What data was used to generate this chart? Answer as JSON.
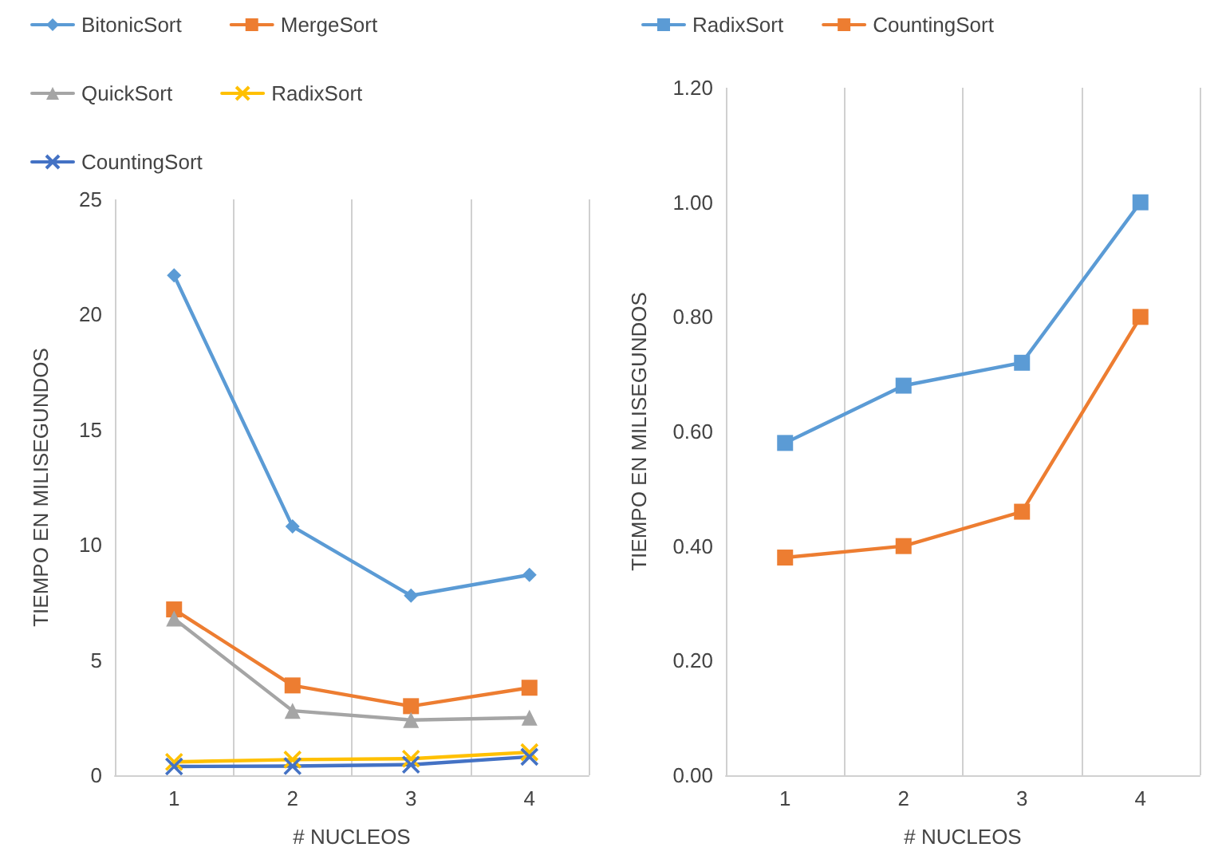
{
  "chart_data": [
    {
      "type": "line",
      "xlabel": "# NUCLEOS",
      "ylabel": "TIEMPO EN MILISEGUNDOS",
      "categories": [
        "1",
        "2",
        "3",
        "4"
      ],
      "ylim": [
        0,
        25
      ],
      "yticks": [
        0,
        5,
        10,
        15,
        20,
        25
      ],
      "grid": "x",
      "legend": "top",
      "series": [
        {
          "name": "BitonicSort",
          "color": "#5b9bd5",
          "marker": "diamond",
          "values": [
            21.7,
            10.8,
            7.8,
            8.7
          ]
        },
        {
          "name": "MergeSort",
          "color": "#ed7d31",
          "marker": "square",
          "values": [
            7.2,
            3.9,
            3.0,
            3.8
          ]
        },
        {
          "name": "QuickSort",
          "color": "#a5a5a5",
          "marker": "triangle",
          "values": [
            6.8,
            2.8,
            2.4,
            2.5
          ]
        },
        {
          "name": "RadixSort",
          "color": "#ffc000",
          "marker": "cross",
          "values": [
            0.58,
            0.68,
            0.72,
            1.0
          ]
        },
        {
          "name": "CountingSort",
          "color": "#4472c4",
          "marker": "cross",
          "values": [
            0.38,
            0.4,
            0.46,
            0.8
          ]
        }
      ]
    },
    {
      "type": "line",
      "xlabel": "# NUCLEOS",
      "ylabel": "TIEMPO EN MILISEGUNDOS",
      "categories": [
        "1",
        "2",
        "3",
        "4"
      ],
      "ylim": [
        0,
        1.2
      ],
      "yticks": [
        {
          "value": 0,
          "label": "0.00"
        },
        {
          "value": 0.2,
          "label": "0.20"
        },
        {
          "value": 0.4,
          "label": "0.40"
        },
        {
          "value": 0.6,
          "label": "0.60"
        },
        {
          "value": 0.8,
          "label": "0.80"
        },
        {
          "value": 1.0,
          "label": "1.00"
        },
        {
          "value": 1.2,
          "label": "1.20"
        }
      ],
      "grid": "x",
      "legend": "top",
      "series": [
        {
          "name": "RadixSort",
          "color": "#5b9bd5",
          "marker": "square",
          "values": [
            0.58,
            0.68,
            0.72,
            1.0
          ]
        },
        {
          "name": "CountingSort",
          "color": "#ed7d31",
          "marker": "square",
          "values": [
            0.38,
            0.4,
            0.46,
            0.8
          ]
        }
      ]
    }
  ]
}
